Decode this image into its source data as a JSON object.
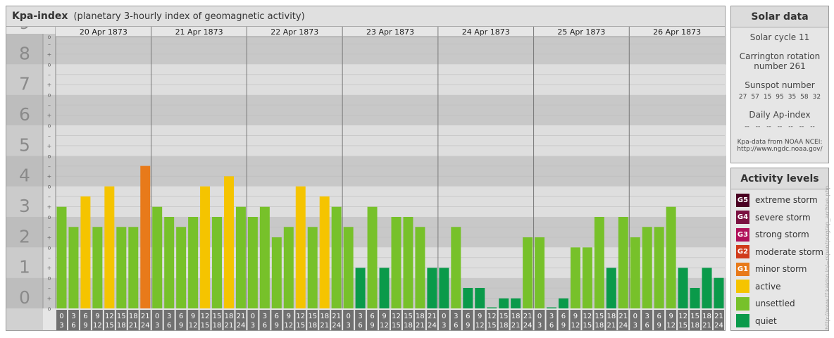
{
  "header": {
    "title": "Kpa-index",
    "subtitle": "(planetary 3-hourly index of geomagnetic activity)"
  },
  "chart_data": {
    "type": "bar",
    "ylim": [
      0,
      9
    ],
    "y_ticks": [
      "0",
      "1",
      "2",
      "3",
      "4",
      "5",
      "6",
      "7",
      "8",
      "9"
    ],
    "sub_ticks": [
      "–",
      "o",
      "+"
    ],
    "days": [
      "20 Apr 1873",
      "21 Apr 1873",
      "22 Apr 1873",
      "23 Apr 1873",
      "24 Apr 1873",
      "25 Apr 1873",
      "26 Apr 1873"
    ],
    "interval_starts": [
      "0",
      "3",
      "6",
      "9",
      "12",
      "15",
      "18",
      "21"
    ],
    "interval_ends": [
      "3",
      "6",
      "9",
      "12",
      "15",
      "18",
      "21",
      "24"
    ],
    "values": [
      3.33,
      2.67,
      3.67,
      2.67,
      4.0,
      2.67,
      2.67,
      4.67,
      3.33,
      3.0,
      2.67,
      3.0,
      4.0,
      3.0,
      4.33,
      3.33,
      3.0,
      3.33,
      2.33,
      2.67,
      4.0,
      2.67,
      3.67,
      3.33,
      2.67,
      1.33,
      3.33,
      1.33,
      3.0,
      3.0,
      2.67,
      1.33,
      1.33,
      2.67,
      0.67,
      0.67,
      0.0,
      0.33,
      0.33,
      2.33,
      2.33,
      0.0,
      0.33,
      2.0,
      2.0,
      3.0,
      1.33,
      3.0,
      2.33,
      2.67,
      2.67,
      3.33,
      1.33,
      0.67,
      1.33,
      1.0
    ],
    "levels": [
      "unsettled",
      "unsettled",
      "active",
      "unsettled",
      "active",
      "unsettled",
      "unsettled",
      "G1",
      "unsettled",
      "unsettled",
      "unsettled",
      "unsettled",
      "active",
      "unsettled",
      "active",
      "unsettled",
      "unsettled",
      "unsettled",
      "unsettled",
      "unsettled",
      "active",
      "unsettled",
      "active",
      "unsettled",
      "unsettled",
      "quiet",
      "unsettled",
      "quiet",
      "unsettled",
      "unsettled",
      "unsettled",
      "quiet",
      "quiet",
      "unsettled",
      "quiet",
      "quiet",
      "quiet",
      "quiet",
      "quiet",
      "unsettled",
      "unsettled",
      "quiet",
      "quiet",
      "unsettled",
      "unsettled",
      "unsettled",
      "quiet",
      "unsettled",
      "unsettled",
      "unsettled",
      "unsettled",
      "unsettled",
      "quiet",
      "quiet",
      "quiet",
      "quiet"
    ]
  },
  "solar_data": {
    "title": "Solar data",
    "solar_cycle": "Solar cycle 11",
    "carrington_line1": "Carrington rotation",
    "carrington_line2": "number 261",
    "sunspot_title": "Sunspot number",
    "sunspot_values": [
      "27",
      "57",
      "15",
      "95",
      "35",
      "58",
      "32"
    ],
    "ap_title": "Daily Ap-index",
    "ap_values": [
      "--",
      "--",
      "--",
      "--",
      "--",
      "--",
      "--"
    ],
    "source_line1": "Kpa-data from NOAA NCEI:",
    "source_line2": "http://www.ngdc.noaa.gov/"
  },
  "activity_levels": {
    "title": "Activity levels",
    "items": [
      {
        "code": "G5",
        "label": "extreme storm",
        "color": "#4a0022"
      },
      {
        "code": "G4",
        "label": "severe storm",
        "color": "#7a1040"
      },
      {
        "code": "G3",
        "label": "strong storm",
        "color": "#b0105a"
      },
      {
        "code": "G2",
        "label": "moderate storm",
        "color": "#d03a1a"
      },
      {
        "code": "G1",
        "label": "minor storm",
        "color": "#e87a1a"
      },
      {
        "code": "",
        "label": "active",
        "color": "#f5c400"
      },
      {
        "code": "",
        "label": "unsettled",
        "color": "#77c12a"
      },
      {
        "code": "",
        "label": "quiet",
        "color": "#0a9a4a"
      }
    ]
  },
  "colors": {
    "active": "#f5c400",
    "unsettled": "#77c12a",
    "quiet": "#0a9a4a",
    "G1": "#e87a1a"
  },
  "credit": "http://www.tf.kakiso.io/~rspen/psrg/ap_archive.php"
}
